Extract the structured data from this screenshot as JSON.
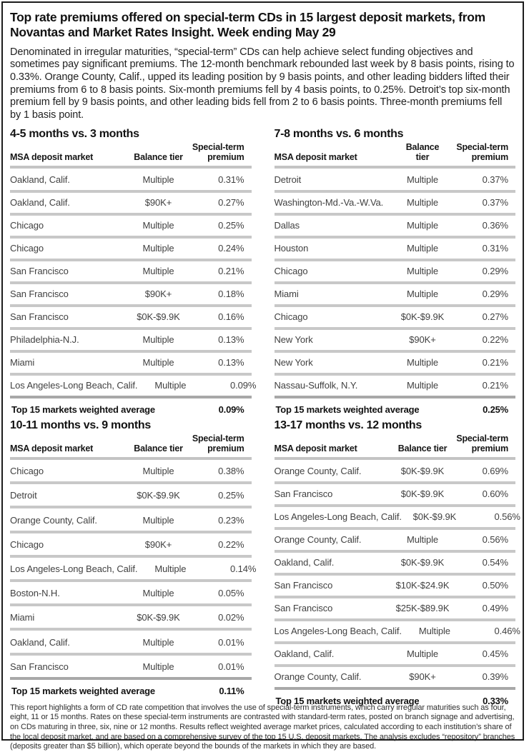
{
  "page": {
    "title": "Top rate premiums offered on special-term CDs in 15 largest deposit markets, from Novantas and Market Rates Insight. Week ending May 29",
    "intro": "Denominated in irregular maturities, “special-term” CDs can help achieve select funding objectives and sometimes pay significant premiums. The 12-month benchmark rebounded last week by 8 basis points, rising to 0.33%. Orange County, Calif., upped its leading position by 9 basis points, and other leading bidders lifted their premiums from 6 to 8 basis points. Six-month premiums fell by 4 basis points, to 0.25%. Detroit’s top six-month premium fell by 9 basis points, and other leading bids fell from 2 to 6 basis points. Three-month premiums fell by 1 basis point.",
    "footnote": "This report highlights a form of CD rate competition that involves the use of special-term instruments, which carry irregular maturities such as four, eight, 11 or 15 months.  Rates on these special-term instruments are contrasted with standard-term rates, posted on branch signage and advertising, on CDs maturing in three, six, nine or 12 months.  Results reflect weighted average market prices, calculated according to each institution’s share of the local deposit market, and are based on a comprehensive survey of the top 15 U.S. deposit markets.  The analysis excludes “repository” branches (deposits greater than $5 billion), which operate beyond the bounds of the markets in which they are based."
  },
  "columns": {
    "market": "MSA deposit market",
    "tier": "Balance tier",
    "premium": "Special-term premium"
  },
  "total_label": "Top 15 markets weighted average",
  "colors": {
    "divider": "#c8c8c8",
    "text_primary": "#121212",
    "text_secondary": "#414141"
  },
  "tables": [
    {
      "title": "4-5 months vs. 3 months",
      "rows": [
        {
          "market": "Oakland, Calif.",
          "tier": "Multiple",
          "premium": "0.31%"
        },
        {
          "market": "Oakland, Calif.",
          "tier": "$90K+",
          "premium": "0.27%"
        },
        {
          "market": "Chicago",
          "tier": "Multiple",
          "premium": "0.25%"
        },
        {
          "market": "Chicago",
          "tier": "Multiple",
          "premium": "0.24%"
        },
        {
          "market": "San Francisco",
          "tier": "Multiple",
          "premium": "0.21%"
        },
        {
          "market": "San Francisco",
          "tier": "$90K+",
          "premium": "0.18%"
        },
        {
          "market": "San Francisco",
          "tier": "$0K-$9.9K",
          "premium": "0.16%"
        },
        {
          "market": "Philadelphia-N.J.",
          "tier": "Multiple",
          "premium": "0.13%"
        },
        {
          "market": "Miami",
          "tier": "Multiple",
          "premium": "0.13%"
        },
        {
          "market": "Los Angeles-Long Beach, Calif.",
          "tier": "Multiple",
          "premium": "0.09%"
        }
      ],
      "total": "0.09%"
    },
    {
      "title": "7-8 months vs. 6 months",
      "rows": [
        {
          "market": "Detroit",
          "tier": "Multiple",
          "premium": "0.37%"
        },
        {
          "market": "Washington-Md.-Va.-W.Va.",
          "tier": "Multiple",
          "premium": "0.37%"
        },
        {
          "market": "Dallas",
          "tier": "Multiple",
          "premium": "0.36%"
        },
        {
          "market": "Houston",
          "tier": "Multiple",
          "premium": "0.31%"
        },
        {
          "market": "Chicago",
          "tier": "Multiple",
          "premium": "0.29%"
        },
        {
          "market": "Miami",
          "tier": "Multiple",
          "premium": "0.29%"
        },
        {
          "market": "Chicago",
          "tier": "$0K-$9.9K",
          "premium": "0.27%"
        },
        {
          "market": "New York",
          "tier": "$90K+",
          "premium": "0.22%"
        },
        {
          "market": "New York",
          "tier": "Multiple",
          "premium": "0.21%"
        },
        {
          "market": "Nassau-Suffolk, N.Y.",
          "tier": "Multiple",
          "premium": "0.21%"
        }
      ],
      "total": "0.25%"
    },
    {
      "title": "10-11 months vs. 9 months",
      "rows": [
        {
          "market": "Chicago",
          "tier": "Multiple",
          "premium": "0.38%"
        },
        {
          "market": "Detroit",
          "tier": "$0K-$9.9K",
          "premium": "0.25%"
        },
        {
          "market": "Orange County, Calif.",
          "tier": "Multiple",
          "premium": "0.23%"
        },
        {
          "market": "Chicago",
          "tier": "$90K+",
          "premium": "0.22%"
        },
        {
          "market": "Los Angeles-Long Beach, Calif.",
          "tier": "Multiple",
          "premium": "0.14%"
        },
        {
          "market": "Boston-N.H.",
          "tier": "Multiple",
          "premium": "0.05%"
        },
        {
          "market": "Miami",
          "tier": "$0K-$9.9K",
          "premium": "0.02%"
        },
        {
          "market": "Oakland, Calif.",
          "tier": "Multiple",
          "premium": "0.01%"
        },
        {
          "market": "San Francisco",
          "tier": "Multiple",
          "premium": "0.01%"
        }
      ],
      "total": "0.11%"
    },
    {
      "title": "13-17 months vs. 12 months",
      "rows": [
        {
          "market": "Orange County, Calif.",
          "tier": "$0K-$9.9K",
          "premium": "0.69%"
        },
        {
          "market": "San Francisco",
          "tier": "$0K-$9.9K",
          "premium": "0.60%"
        },
        {
          "market": "Los Angeles-Long Beach, Calif.",
          "tier": "$0K-$9.9K",
          "premium": "0.56%"
        },
        {
          "market": "Orange County, Calif.",
          "tier": "Multiple",
          "premium": "0.56%"
        },
        {
          "market": "Oakland, Calif.",
          "tier": "$0K-$9.9K",
          "premium": "0.54%"
        },
        {
          "market": "San Francisco",
          "tier": "$10K-$24.9K",
          "premium": "0.50%"
        },
        {
          "market": "San Francisco",
          "tier": "$25K-$89.9K",
          "premium": "0.49%"
        },
        {
          "market": "Los Angeles-Long Beach, Calif.",
          "tier": "Multiple",
          "premium": "0.46%"
        },
        {
          "market": "Oakland, Calif.",
          "tier": "Multiple",
          "premium": "0.45%"
        },
        {
          "market": "Orange County, Calif.",
          "tier": "$90K+",
          "premium": "0.39%"
        }
      ],
      "total": "0.33%"
    }
  ]
}
